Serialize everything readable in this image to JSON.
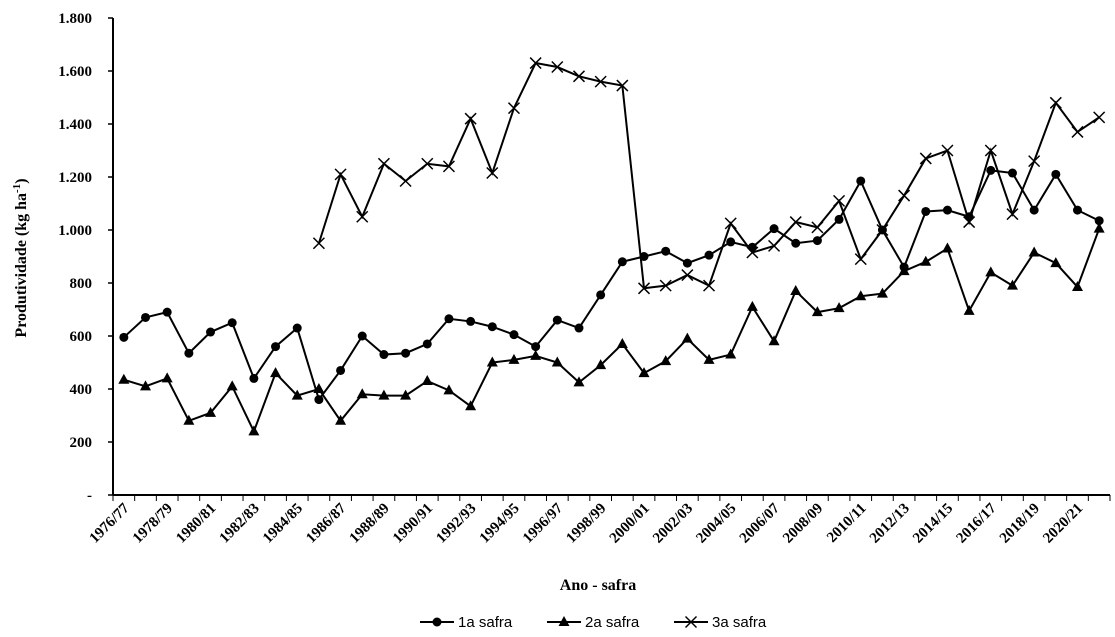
{
  "chart_data": {
    "type": "line",
    "xlabel": "Ano - safra",
    "ylabel_main": "Produtividade  (kg ha",
    "ylabel_sup": "-1",
    "ylabel_close": ")",
    "ylim": [
      0,
      1800
    ],
    "yticks": [
      {
        "value": 0,
        "label": "-"
      },
      {
        "value": 200,
        "label": "200"
      },
      {
        "value": 400,
        "label": "400"
      },
      {
        "value": 600,
        "label": "600"
      },
      {
        "value": 800,
        "label": "800"
      },
      {
        "value": 1000,
        "label": "1.000"
      },
      {
        "value": 1200,
        "label": "1.200"
      },
      {
        "value": 1400,
        "label": "1.400"
      },
      {
        "value": 1600,
        "label": "1.600"
      },
      {
        "value": 1800,
        "label": "1.800"
      }
    ],
    "categories": [
      "1976/77",
      "1977/78",
      "1978/79",
      "1979/80",
      "1980/81",
      "1981/82",
      "1982/83",
      "1983/84",
      "1984/85",
      "1985/86",
      "1986/87",
      "1987/88",
      "1988/89",
      "1989/90",
      "1990/91",
      "1991/92",
      "1992/93",
      "1993/94",
      "1994/95",
      "1995/96",
      "1996/97",
      "1997/98",
      "1998/99",
      "1999/00",
      "2000/01",
      "2001/02",
      "2002/03",
      "2003/04",
      "2004/05",
      "2005/06",
      "2006/07",
      "2007/08",
      "2008/09",
      "2009/10",
      "2010/11",
      "2011/12",
      "2012/13",
      "2013/14",
      "2014/15",
      "2015/16",
      "2016/17",
      "2017/18",
      "2018/19",
      "2019/20",
      "2020/21",
      "2021/22"
    ],
    "tick_labels": [
      "1976/77",
      "1978/79",
      "1980/81",
      "1982/83",
      "1984/85",
      "1986/87",
      "1988/89",
      "1990/91",
      "1992/93",
      "1994/95",
      "1996/97",
      "1998/99",
      "2000/01",
      "2002/03",
      "2004/05",
      "2006/07",
      "2008/09",
      "2010/11",
      "2012/13",
      "2014/15",
      "2016/17",
      "2018/19",
      "2020/21"
    ],
    "series": [
      {
        "name": "1a safra",
        "marker": "circle",
        "values": [
          595,
          670,
          690,
          535,
          615,
          650,
          440,
          560,
          630,
          360,
          470,
          600,
          530,
          535,
          570,
          665,
          655,
          635,
          605,
          560,
          660,
          630,
          755,
          880,
          900,
          920,
          875,
          905,
          955,
          935,
          1005,
          950,
          960,
          1040,
          1185,
          1000,
          860,
          1070,
          1075,
          1050,
          1225,
          1215,
          1075,
          1210,
          1075,
          1035
        ]
      },
      {
        "name": "2a safra",
        "marker": "triangle",
        "values": [
          435,
          410,
          440,
          280,
          310,
          410,
          240,
          460,
          375,
          400,
          280,
          380,
          375,
          375,
          430,
          395,
          335,
          500,
          510,
          525,
          500,
          425,
          490,
          570,
          460,
          505,
          590,
          510,
          530,
          710,
          580,
          770,
          690,
          705,
          750,
          760,
          845,
          880,
          930,
          695,
          840,
          790,
          915,
          875,
          785,
          1005
        ]
      },
      {
        "name": "3a safra",
        "marker": "x",
        "values": [
          null,
          null,
          null,
          null,
          null,
          null,
          null,
          null,
          null,
          950,
          1210,
          1050,
          1250,
          1185,
          1250,
          1240,
          1420,
          1215,
          1460,
          1630,
          1615,
          1580,
          1560,
          1545,
          780,
          790,
          830,
          790,
          1025,
          915,
          940,
          1030,
          1010,
          1110,
          890,
          1000,
          1130,
          1270,
          1300,
          1030,
          1300,
          1060,
          1260,
          1480,
          1370,
          1425
        ]
      }
    ]
  }
}
